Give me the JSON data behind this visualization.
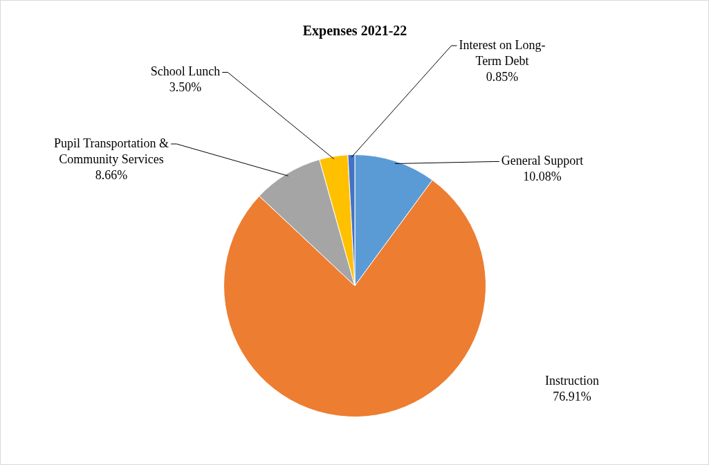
{
  "chart_data": {
    "type": "pie",
    "title": "Expenses 2021-22",
    "categories": [
      "General Support",
      "Instruction",
      "Pupil Transportation & Community Services",
      "School Lunch",
      "Interest on Long-Term Debt"
    ],
    "values": [
      10.08,
      76.91,
      8.66,
      3.5,
      0.85
    ],
    "colors": [
      "#5b9bd5",
      "#ed7d31",
      "#a5a5a5",
      "#ffc000",
      "#4472c4"
    ],
    "value_labels": [
      "10.08%",
      "76.91%",
      "8.66%",
      "3.50%",
      "0.85%"
    ],
    "legend": false
  }
}
